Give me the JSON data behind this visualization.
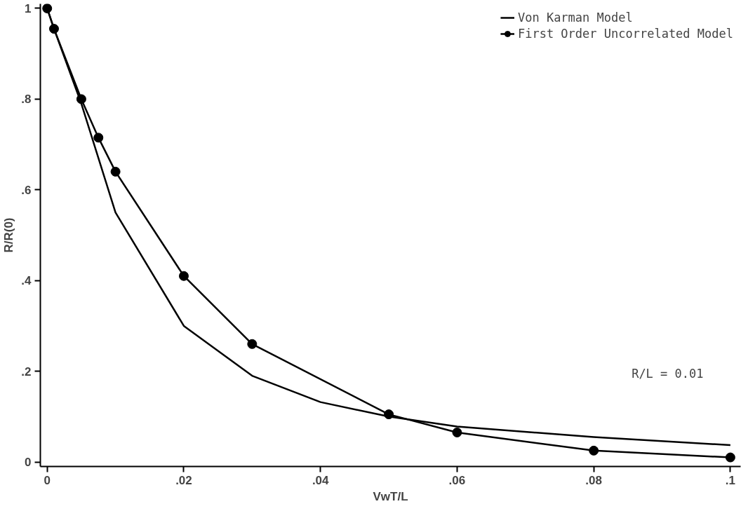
{
  "chart_data": {
    "type": "line",
    "xlabel": "VwT/L",
    "ylabel": "R/R(0)",
    "xlim": [
      -0.001,
      0.1015
    ],
    "ylim": [
      -0.01,
      1.01
    ],
    "xticks": [
      0,
      {
        "value": 0.02,
        "label": ".02"
      },
      {
        "value": 0.04,
        "label": ".04"
      },
      {
        "value": 0.06,
        "label": ".06"
      },
      {
        "value": 0.08,
        "label": ".08"
      },
      {
        "value": 0.1,
        "label": ".1"
      }
    ],
    "yticks": [
      0,
      {
        "value": 0.2,
        "label": ".2"
      },
      {
        "value": 0.4,
        "label": ".4"
      },
      {
        "value": 0.6,
        "label": ".6"
      },
      {
        "value": 0.8,
        "label": ".8"
      },
      1
    ],
    "series": [
      {
        "name": "Von Karman Model",
        "color": "#000000",
        "marker": "none",
        "x": [
          0,
          0.001,
          0.005,
          0.01,
          0.02,
          0.03,
          0.04,
          0.05,
          0.06,
          0.08,
          0.1
        ],
        "values": [
          1,
          0.955,
          0.79,
          0.55,
          0.3,
          0.19,
          0.132,
          0.1,
          0.078,
          0.055,
          0.037
        ]
      },
      {
        "name": "First Order Uncorrelated Model",
        "color": "#000000",
        "marker": "circle",
        "x": [
          0,
          0.001,
          0.005,
          0.0075,
          0.01,
          0.02,
          0.03,
          0.05,
          0.06,
          0.08,
          0.1
        ],
        "values": [
          1,
          0.955,
          0.8,
          0.715,
          0.64,
          0.41,
          0.26,
          0.105,
          0.065,
          0.025,
          0.01
        ]
      }
    ],
    "legend": "top right",
    "grid": false,
    "annotations": [
      "R/L = 0.01"
    ]
  }
}
